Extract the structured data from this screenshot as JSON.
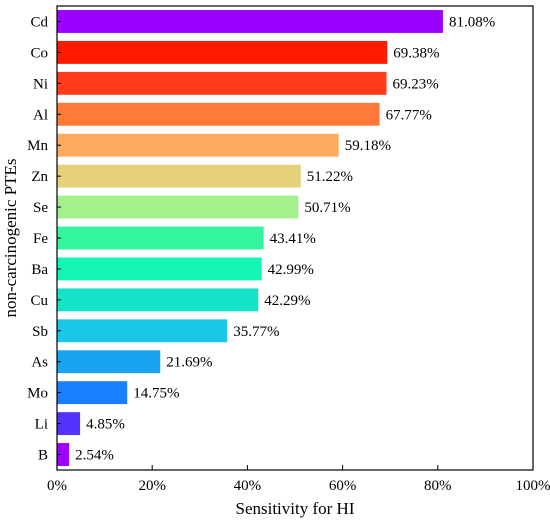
{
  "chart_data": {
    "type": "bar",
    "orientation": "horizontal",
    "xlabel": "Sensitivity for HI",
    "ylabel": "non-carcinogenic PTEs",
    "xlim": [
      0,
      100
    ],
    "x_ticks": [
      0,
      20,
      40,
      60,
      80,
      100
    ],
    "x_tick_labels": [
      "0%",
      "20%",
      "40%",
      "60%",
      "80%",
      "100%"
    ],
    "grid": false,
    "legend": "none",
    "categories": [
      "Cd",
      "Co",
      "Ni",
      "Al",
      "Mn",
      "Zn",
      "Se",
      "Fe",
      "Ba",
      "Cu",
      "Sb",
      "As",
      "Mo",
      "Li",
      "B"
    ],
    "values": [
      81.08,
      69.38,
      69.23,
      67.77,
      59.18,
      51.22,
      50.71,
      43.41,
      42.99,
      42.29,
      35.77,
      21.69,
      14.75,
      4.85,
      2.54
    ],
    "value_labels": [
      "81.08%",
      "69.38%",
      "69.23%",
      "67.77%",
      "59.18%",
      "51.22%",
      "50.71%",
      "43.41%",
      "42.99%",
      "42.29%",
      "35.77%",
      "21.69%",
      "14.75%",
      "4.85%",
      "2.54%"
    ],
    "colors": [
      "#9b00ff",
      "#ff1a00",
      "#ff3b1a",
      "#ff7a38",
      "#ffab5e",
      "#e6d17a",
      "#a3f08c",
      "#33f59e",
      "#14f5b3",
      "#14e3c9",
      "#1ac7e8",
      "#1aa3f0",
      "#1a80ff",
      "#5533ff",
      "#9b00ff"
    ]
  }
}
